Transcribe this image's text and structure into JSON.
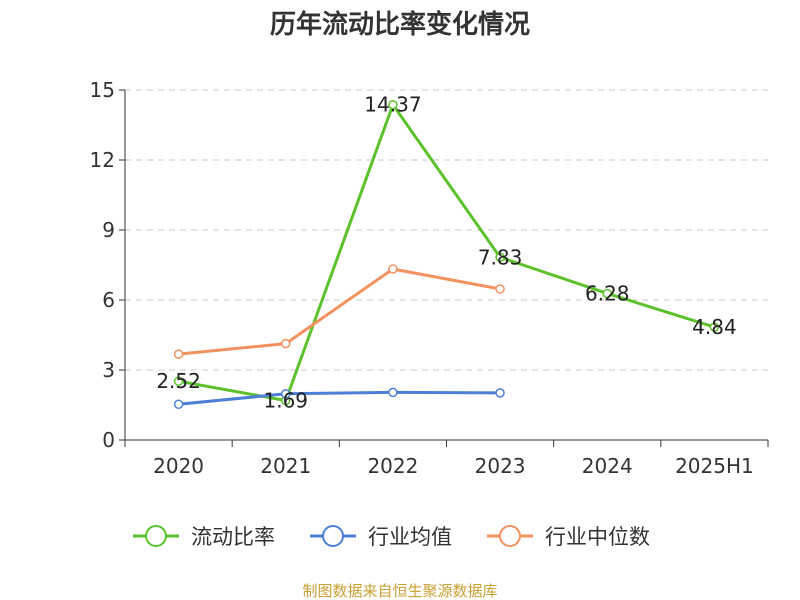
{
  "chart_data": {
    "type": "line",
    "title": "历年流动比率变化情况",
    "categories": [
      "2020",
      "2021",
      "2022",
      "2023",
      "2024",
      "2025H1"
    ],
    "ylim": [
      0,
      15
    ],
    "yticks": [
      "0",
      "3",
      "6",
      "9",
      "12",
      "15"
    ],
    "grid": true,
    "legend_position": "bottom",
    "series": [
      {
        "name": "流动比率",
        "color": "#5cc22b",
        "values": [
          2.52,
          1.69,
          14.37,
          7.83,
          6.28,
          4.84
        ],
        "labels": [
          "2.52",
          "1.69",
          "14.37",
          "7.83",
          "6.28",
          "4.84"
        ]
      },
      {
        "name": "行业均值",
        "color": "#4e7fd8",
        "values": [
          1.53,
          1.98,
          2.04,
          2.02,
          null,
          null
        ]
      },
      {
        "name": "行业中位数",
        "color": "#f39260",
        "values": [
          3.68,
          4.13,
          7.33,
          6.47,
          null,
          null
        ]
      }
    ]
  },
  "footer": {
    "text": "制图数据来自恒生聚源数据库",
    "color": "#c9a032"
  }
}
